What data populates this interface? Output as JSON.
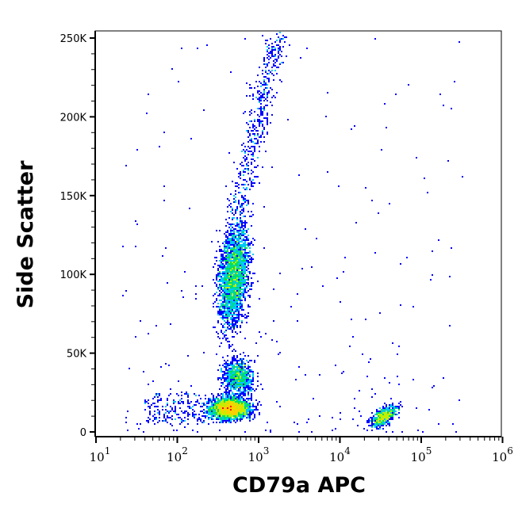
{
  "chart_data": {
    "type": "scatter",
    "subtype": "flow-cytometry density dot plot",
    "xlabel": "CD79a APC",
    "ylabel": "Side Scatter",
    "x_scale": "log",
    "xlim": [
      10,
      1000000
    ],
    "ylim": [
      0,
      255000
    ],
    "x_ticks": [
      {
        "base": "10",
        "exp": "1",
        "value": 10
      },
      {
        "base": "10",
        "exp": "2",
        "value": 100
      },
      {
        "base": "10",
        "exp": "3",
        "value": 1000
      },
      {
        "base": "10",
        "exp": "4",
        "value": 10000
      },
      {
        "base": "10",
        "exp": "5",
        "value": 100000
      },
      {
        "base": "10",
        "exp": "6",
        "value": 1000000
      }
    ],
    "y_ticks": [
      {
        "label": "0",
        "value": 0
      },
      {
        "label": "50K",
        "value": 50000
      },
      {
        "label": "100K",
        "value": 100000
      },
      {
        "label": "150K",
        "value": 150000
      },
      {
        "label": "200K",
        "value": 200000
      },
      {
        "label": "250K",
        "value": 250000
      }
    ],
    "grid": false,
    "colormap": [
      "#0000ff",
      "#00c8ff",
      "#00e060",
      "#c0f000",
      "#ffd000",
      "#ff0000"
    ],
    "populations": [
      {
        "x_center": 500,
        "y_center": 100000,
        "density": "high"
      },
      {
        "x_center": 450,
        "y_center": 15000,
        "density": "highest"
      },
      {
        "x_center": 600,
        "y_center": 35000,
        "density": "medium"
      },
      {
        "x_center": 35000,
        "y_center": 10000,
        "density": "medium"
      },
      {
        "x_center": 1500,
        "y_center": 220000,
        "density": "low"
      }
    ]
  }
}
